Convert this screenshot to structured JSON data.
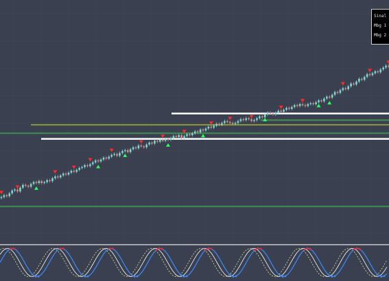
{
  "colors": {
    "background": "#3a4050",
    "grid": "#444b5b",
    "bull": "#7fd6d0",
    "bear": "#d98b84",
    "sell_label": "#ff2a2a",
    "buy_label": "#2aff5a",
    "white_level": "#ffffff",
    "green_level": "#3f8f4f",
    "olive_level": "#8a9a3a",
    "osc_blue": "#3b8cff",
    "osc_white": "#ffffff",
    "osc_yellow": "#e8e08a",
    "osc_red": "#ff2020"
  },
  "legend": {
    "items": [
      "Sinal =",
      "Mbg 1 =",
      "Mbg 2 ="
    ]
  },
  "chart_data": {
    "type": "candlestick",
    "close": [
      50,
      52,
      51,
      54,
      57,
      58,
      56,
      60,
      63,
      62,
      61,
      64,
      66,
      65,
      67,
      65,
      66,
      68,
      67,
      70,
      72,
      71,
      73,
      75,
      74,
      76,
      78,
      77,
      79,
      81,
      82,
      84,
      83,
      85,
      87,
      89,
      88,
      90,
      92,
      91,
      93,
      95,
      96,
      94,
      97,
      99,
      100,
      98,
      101,
      103,
      102,
      105,
      104,
      103,
      106,
      108,
      107,
      110,
      109,
      111,
      110,
      112,
      111,
      113,
      115,
      114,
      116,
      113,
      115,
      117,
      116,
      118,
      120,
      119,
      122,
      121,
      123,
      125,
      124,
      126,
      128,
      127,
      129,
      131,
      130,
      129,
      128,
      129,
      131,
      133,
      132,
      134,
      133,
      131,
      132,
      134,
      136,
      135,
      138,
      140,
      139,
      138,
      140,
      142,
      141,
      143,
      145,
      144,
      146,
      148,
      147,
      149,
      148,
      147,
      149,
      150,
      149,
      151,
      153,
      152,
      155,
      157,
      156,
      159,
      162,
      161,
      164,
      166,
      165,
      168,
      171,
      170,
      173,
      176,
      175,
      178,
      181,
      180,
      182,
      184,
      183,
      186,
      188,
      190,
      189,
      192
    ],
    "buy_markers": [
      13,
      36,
      46,
      62,
      75,
      98,
      118,
      122
    ],
    "sell_markers": [
      0,
      6,
      20,
      27,
      33,
      41,
      52,
      60,
      68,
      78,
      85,
      93,
      104,
      112,
      127,
      137,
      144
    ],
    "levels": [
      {
        "value": 139,
        "color": "white"
      },
      {
        "value": 132,
        "color": "green"
      },
      {
        "value": 127,
        "color": "olive"
      },
      {
        "value": 118,
        "color": "green"
      },
      {
        "value": 112,
        "color": "white"
      },
      {
        "value": 40,
        "color": "green"
      }
    ]
  }
}
